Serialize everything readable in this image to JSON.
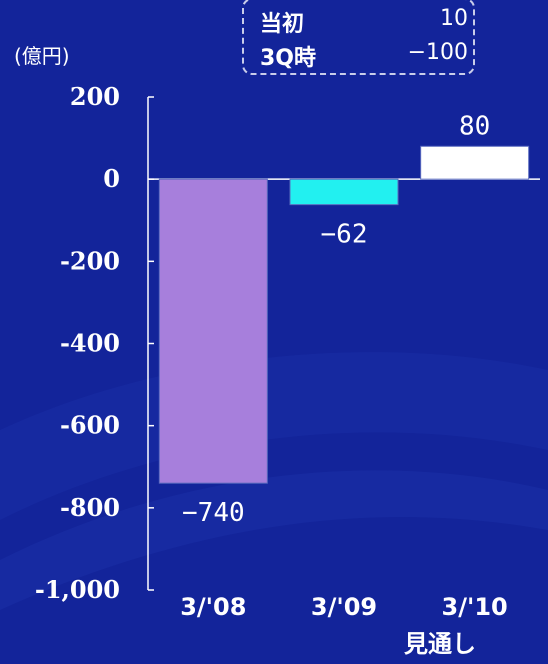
{
  "unit_label": "(億円)",
  "note": {
    "rows": [
      {
        "label": "当初",
        "value": "10"
      },
      {
        "label": "3Q時",
        "value": "−100"
      }
    ]
  },
  "x_sublabel": "見通し",
  "colors": {
    "background": "#13249a",
    "axis": "#ffffff",
    "bar_3_08": "#a77fdc",
    "bar_3_09": "#22f0f0",
    "bar_3_10": "#ffffff"
  },
  "chart_data": {
    "type": "bar",
    "title": "",
    "xlabel": "",
    "ylabel": "(億円)",
    "categories": [
      "3/'08",
      "3/'09",
      "3/'10"
    ],
    "values": [
      -740,
      -62,
      80
    ],
    "value_labels": [
      "−740",
      "−62",
      "80"
    ],
    "ylim": [
      -1000,
      200
    ],
    "yticks": [
      200,
      0,
      -200,
      -400,
      -600,
      -800,
      -1000
    ],
    "ytick_labels": [
      "200",
      "0",
      "-200",
      "-400",
      "-600",
      "-800",
      "-1,000"
    ],
    "grid": false,
    "legend": "none"
  }
}
